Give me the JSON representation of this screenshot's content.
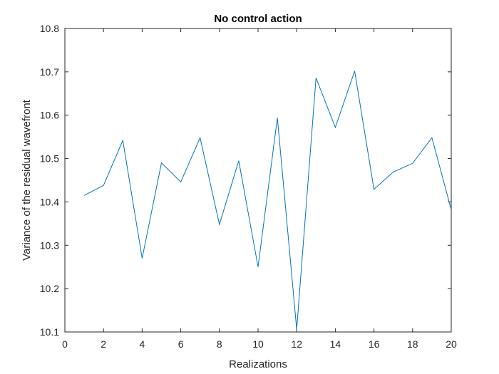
{
  "chart_data": {
    "type": "line",
    "title": "No control action",
    "xlabel": "Realizations",
    "ylabel": "Variance of the residual wavefront",
    "xlim": [
      0,
      20
    ],
    "ylim": [
      10.1,
      10.8
    ],
    "xticks": [
      0,
      2,
      4,
      6,
      8,
      10,
      12,
      14,
      16,
      18,
      20
    ],
    "xtick_labels": [
      "0",
      "2",
      "4",
      "6",
      "8",
      "10",
      "12",
      "14",
      "16",
      "18",
      "20"
    ],
    "yticks": [
      10.1,
      10.2,
      10.3,
      10.4,
      10.5,
      10.6,
      10.7,
      10.8
    ],
    "ytick_labels": [
      "10.1",
      "10.2",
      "10.3",
      "10.4",
      "10.5",
      "10.6",
      "10.7",
      "10.8"
    ],
    "grid": false,
    "box": true,
    "series": [
      {
        "x": [
          1,
          2,
          3,
          4,
          5,
          6,
          7,
          8,
          9,
          10,
          11,
          12,
          13,
          14,
          15,
          16,
          17,
          18,
          19,
          20
        ],
        "values": [
          10.415,
          10.438,
          10.542,
          10.27,
          10.49,
          10.446,
          10.548,
          10.348,
          10.495,
          10.25,
          10.594,
          10.106,
          10.686,
          10.572,
          10.702,
          10.429,
          10.469,
          10.489,
          10.548,
          10.382
        ],
        "color": "#0072bd"
      }
    ]
  }
}
